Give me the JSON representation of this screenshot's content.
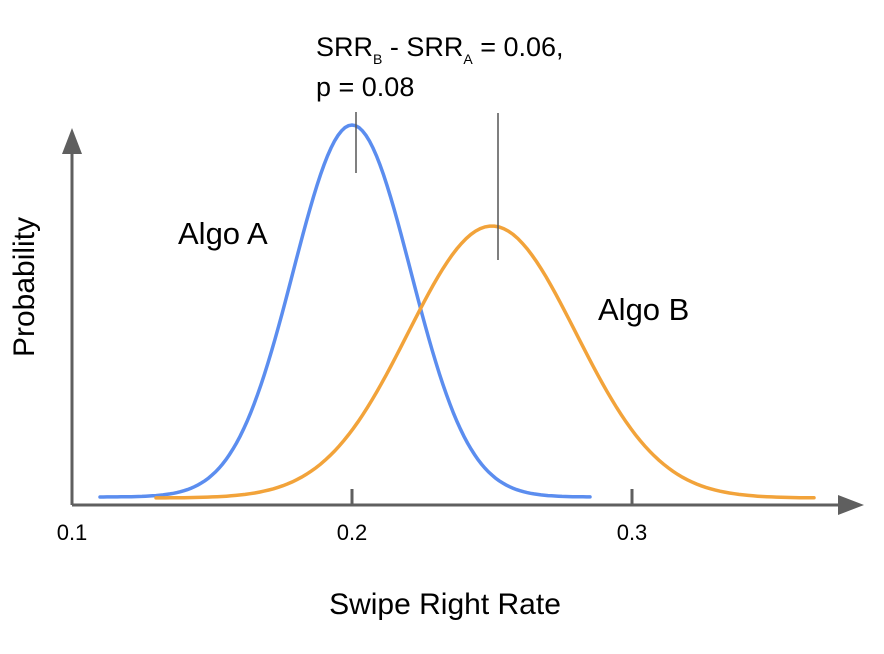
{
  "chart_data": {
    "type": "line",
    "title": "",
    "xlabel": "Swipe Right Rate",
    "ylabel": "Probability",
    "xlim": [
      0.1,
      0.38
    ],
    "x_ticks": [
      "0.1",
      "0.2",
      "0.3"
    ],
    "grid": false,
    "colors": {
      "axis": "#5f5f5f",
      "algo_a": "#5b8def",
      "algo_b": "#f2a33a",
      "marker": "#555555"
    },
    "series": [
      {
        "name": "Algo A",
        "mean": 0.2,
        "sd": 0.021,
        "x_range": [
          0.11,
          0.285
        ]
      },
      {
        "name": "Algo B",
        "mean": 0.25,
        "sd": 0.03,
        "x_range": [
          0.13,
          0.365
        ]
      }
    ],
    "series_labels": [
      "Algo A",
      "Algo B"
    ],
    "annotation": {
      "line1": {
        "srr": "SRR",
        "sub_b": "B",
        "minus": " - ",
        "srr2": "SRR",
        "sub_a": "A",
        "value": " = 0.06,"
      },
      "line2": "p = 0.08",
      "mean_markers": [
        0.2,
        0.25
      ]
    }
  }
}
